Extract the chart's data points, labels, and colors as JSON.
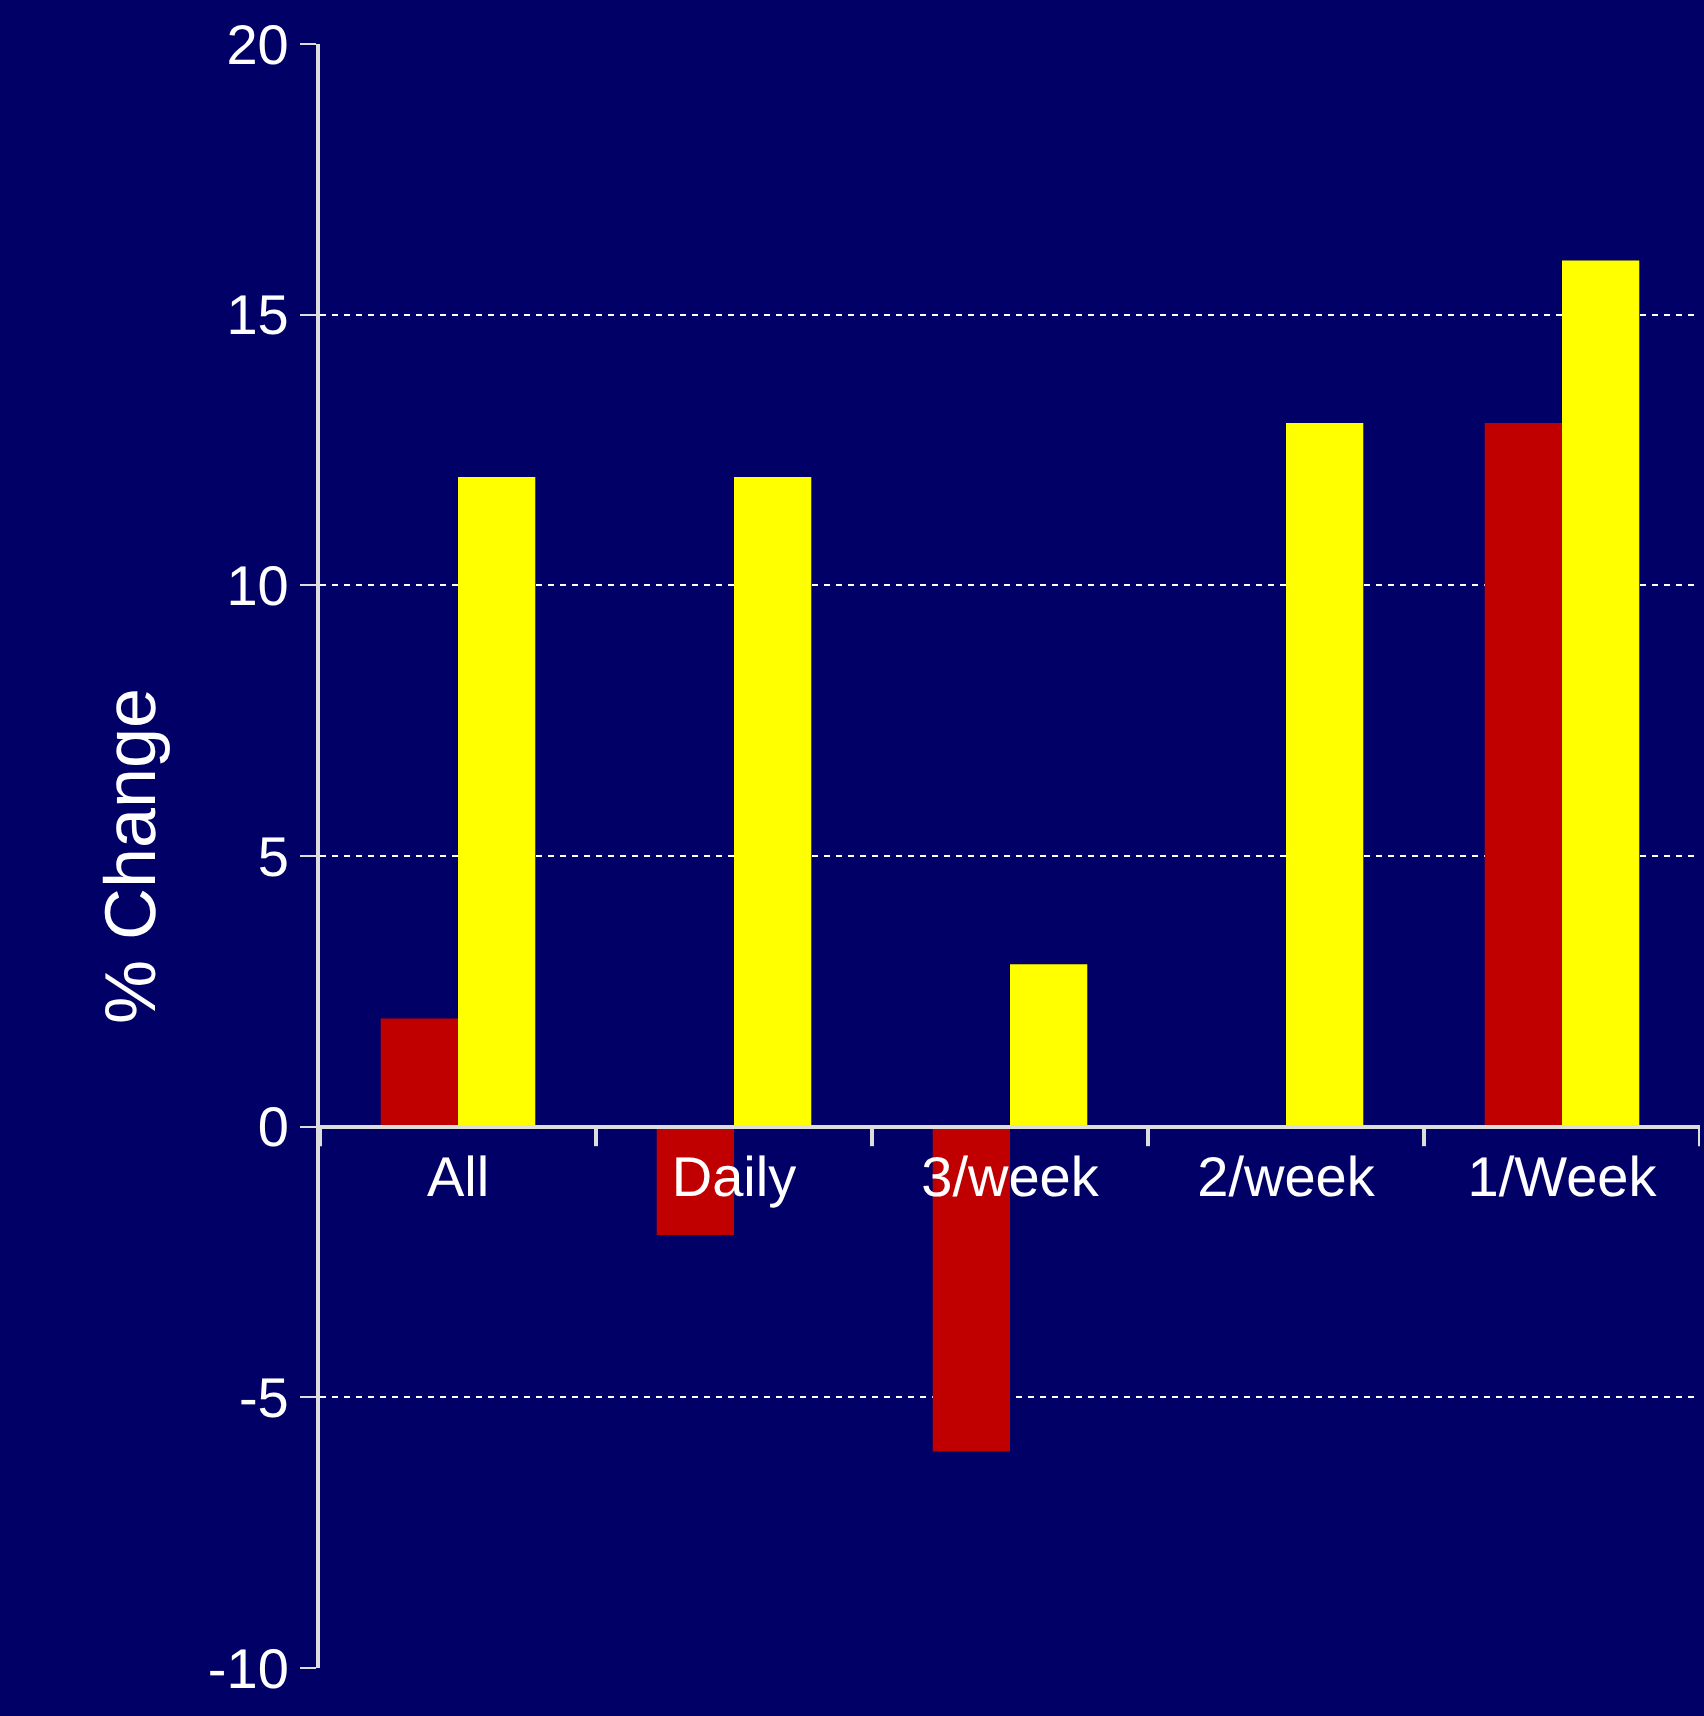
{
  "chart_data": {
    "type": "bar",
    "ylabel": "% Change",
    "categories": [
      "All",
      "Daily",
      "3/week",
      "2/week",
      "1/Week"
    ],
    "series": [
      {
        "color": "#c00000",
        "values": [
          2,
          -2,
          -6,
          0,
          13
        ]
      },
      {
        "color": "#ffff00",
        "values": [
          12,
          12,
          3,
          13,
          16
        ]
      }
    ],
    "ylim": [
      -10,
      20
    ],
    "yticks": [
      -10,
      -5,
      0,
      5,
      10,
      15,
      20
    ],
    "grid": "y"
  }
}
